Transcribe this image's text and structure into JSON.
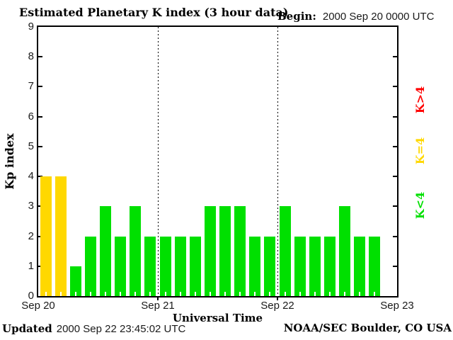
{
  "header": {
    "title": "Estimated Planetary K index (3 hour data)",
    "begin_label": "Begin:",
    "begin_value": "2000 Sep 20 0000 UTC"
  },
  "footer": {
    "updated_label": "Updated",
    "updated_value": "2000 Sep 22 23:45:02 UTC",
    "credit": "NOAA/SEC Boulder, CO USA"
  },
  "chart_data": {
    "type": "bar",
    "title": "Estimated Planetary K index (3 hour data)",
    "begin": "2000 Sep 20 0000 UTC",
    "xlabel": "Universal Time",
    "ylabel": "Kp index",
    "ylim": [
      0,
      9
    ],
    "yticks": [
      0,
      1,
      2,
      3,
      4,
      5,
      6,
      7,
      8,
      9
    ],
    "x_day_labels": [
      "Sep 20",
      "Sep 21",
      "Sep 22",
      "Sep 23"
    ],
    "hours_per_bar": 3,
    "bars_per_day": 8,
    "grid": "none",
    "day_separator_style": "dotted",
    "legend_position": "right-rotated",
    "days": [
      {
        "date": "Sep 20",
        "values": [
          4,
          4,
          1,
          2,
          3,
          2,
          3,
          2
        ]
      },
      {
        "date": "Sep 21",
        "values": [
          2,
          2,
          2,
          3,
          3,
          3,
          2,
          2
        ]
      },
      {
        "date": "Sep 22",
        "values": [
          3,
          2,
          2,
          2,
          3,
          2,
          2
        ]
      }
    ],
    "colors": {
      "k_lt_4": "#00e000",
      "k_eq_4": "#ffd800",
      "k_gt_4": "#ff0000"
    },
    "legend": [
      {
        "label": "K>4",
        "color": "#ff0000"
      },
      {
        "label": "K=4",
        "color": "#ffd800"
      },
      {
        "label": "K<4",
        "color": "#00e000"
      }
    ]
  }
}
